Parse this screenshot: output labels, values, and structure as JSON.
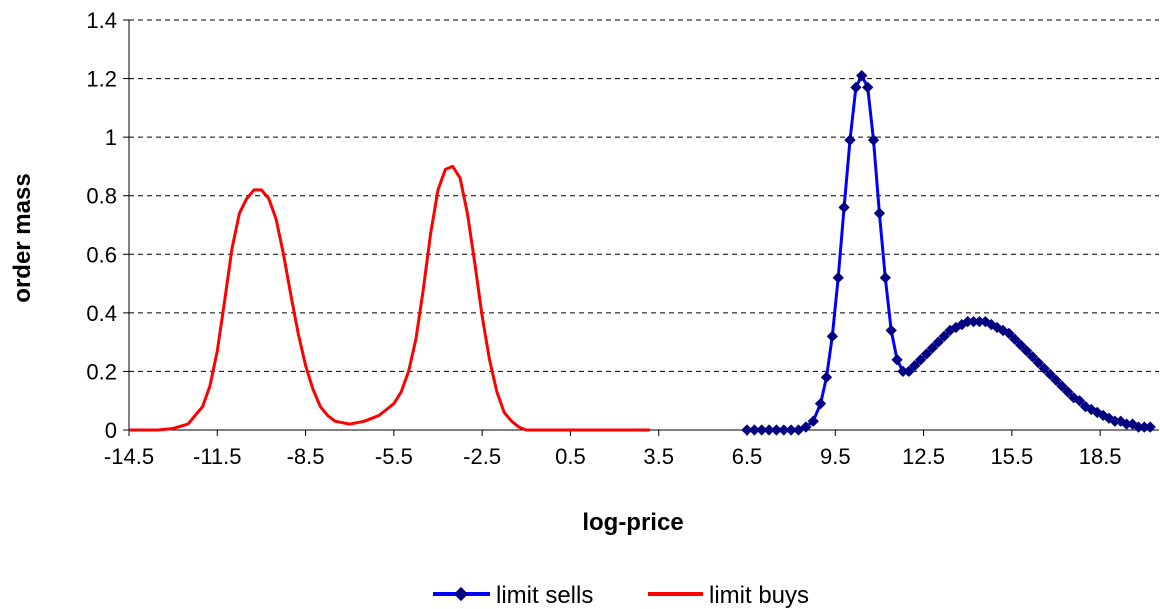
{
  "chart_data": {
    "type": "line",
    "title": "",
    "xlabel": "log-price",
    "ylabel": "order mass",
    "xlim": [
      -14.5,
      20.5
    ],
    "ylim": [
      0,
      1.4
    ],
    "x_ticks": [
      "-14.5",
      "-11.5",
      "-8.5",
      "-5.5",
      "-2.5",
      "0.5",
      "3.5",
      "6.5",
      "9.5",
      "12.5",
      "15.5",
      "18.5"
    ],
    "y_ticks": [
      "0",
      "0.2",
      "0.4",
      "0.6",
      "0.8",
      "1",
      "1.2",
      "1.4"
    ],
    "grid": "horizontal dashed",
    "legend_position": "bottom",
    "series": [
      {
        "name": "limit sells",
        "color": "#0000ff",
        "marker": "diamond",
        "marker_color": "#000080",
        "x": [
          6.5,
          6.75,
          7.0,
          7.25,
          7.5,
          7.75,
          8.0,
          8.25,
          8.5,
          8.75,
          9.0,
          9.2,
          9.4,
          9.6,
          9.8,
          10.0,
          10.2,
          10.4,
          10.6,
          10.8,
          11.0,
          11.2,
          11.4,
          11.6,
          11.8,
          12.0,
          12.2,
          12.4,
          12.6,
          12.8,
          13.0,
          13.2,
          13.4,
          13.6,
          13.8,
          14.0,
          14.2,
          14.4,
          14.6,
          14.8,
          15.0,
          15.2,
          15.4,
          15.6,
          15.8,
          16.0,
          16.2,
          16.4,
          16.6,
          16.8,
          17.0,
          17.2,
          17.4,
          17.6,
          17.8,
          18.0,
          18.2,
          18.4,
          18.6,
          18.8,
          19.0,
          19.2,
          19.4,
          19.6,
          19.8,
          20.0,
          20.2
        ],
        "y": [
          0.0,
          0.0,
          0.0,
          0.0,
          0.0,
          0.0,
          0.0,
          0.0,
          0.01,
          0.03,
          0.09,
          0.18,
          0.32,
          0.52,
          0.76,
          0.99,
          1.17,
          1.21,
          1.17,
          0.99,
          0.74,
          0.52,
          0.34,
          0.24,
          0.2,
          0.2,
          0.22,
          0.24,
          0.26,
          0.28,
          0.3,
          0.32,
          0.34,
          0.35,
          0.36,
          0.37,
          0.37,
          0.37,
          0.37,
          0.36,
          0.35,
          0.34,
          0.33,
          0.31,
          0.29,
          0.27,
          0.25,
          0.23,
          0.21,
          0.19,
          0.17,
          0.15,
          0.13,
          0.11,
          0.1,
          0.08,
          0.07,
          0.06,
          0.05,
          0.04,
          0.03,
          0.03,
          0.02,
          0.02,
          0.01,
          0.01,
          0.01
        ]
      },
      {
        "name": "limit buys",
        "color": "#ff0000",
        "x": [
          -14.5,
          -14.0,
          -13.5,
          -13.0,
          -12.5,
          -12.0,
          -11.75,
          -11.5,
          -11.25,
          -11.0,
          -10.75,
          -10.5,
          -10.25,
          -10.0,
          -9.75,
          -9.5,
          -9.25,
          -9.0,
          -8.75,
          -8.5,
          -8.25,
          -8.0,
          -7.75,
          -7.5,
          -7.25,
          -7.0,
          -6.75,
          -6.5,
          -6.25,
          -6.0,
          -5.75,
          -5.5,
          -5.25,
          -5.0,
          -4.75,
          -4.5,
          -4.25,
          -4.0,
          -3.75,
          -3.5,
          -3.25,
          -3.0,
          -2.75,
          -2.5,
          -2.25,
          -2.0,
          -1.75,
          -1.5,
          -1.25,
          -1.0,
          -0.75,
          -0.5,
          -0.25,
          0.0,
          0.5,
          1.0,
          1.5,
          2.0,
          2.5,
          3.0,
          3.2
        ],
        "y": [
          0.0,
          0.0,
          0.0,
          0.005,
          0.02,
          0.08,
          0.15,
          0.27,
          0.44,
          0.62,
          0.74,
          0.79,
          0.82,
          0.82,
          0.79,
          0.72,
          0.6,
          0.46,
          0.33,
          0.22,
          0.14,
          0.08,
          0.05,
          0.03,
          0.025,
          0.02,
          0.025,
          0.03,
          0.04,
          0.05,
          0.07,
          0.09,
          0.13,
          0.2,
          0.31,
          0.48,
          0.67,
          0.82,
          0.89,
          0.9,
          0.86,
          0.74,
          0.57,
          0.39,
          0.24,
          0.13,
          0.06,
          0.03,
          0.01,
          0.0,
          0.0,
          0.0,
          0.0,
          0.0,
          0.0,
          0.0,
          0.0,
          0.0,
          0.0,
          0.0,
          0.0
        ]
      }
    ]
  }
}
